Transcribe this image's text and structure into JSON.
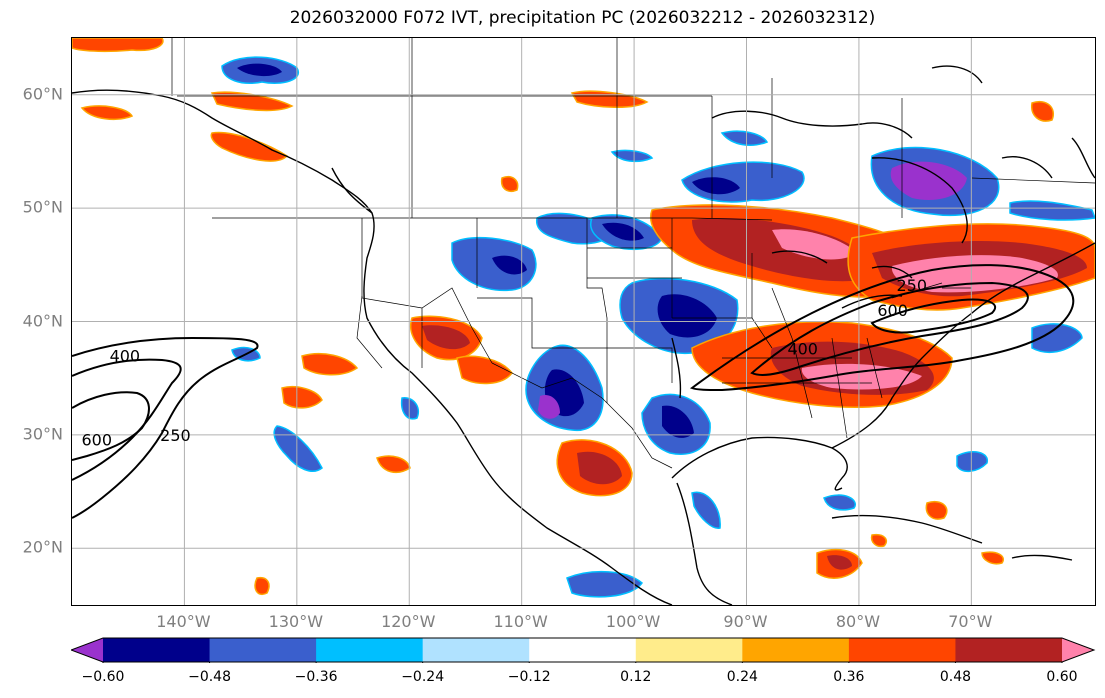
{
  "title": "2026032000 F072 IVT, precipitation PC (2026032212 - 2026032312)",
  "map": {
    "projection": "equirectangular",
    "lon_range": [
      -150,
      -59
    ],
    "lat_range": [
      15,
      65
    ],
    "grid": true,
    "lat_labels": [
      {
        "lat": 60,
        "text": "60°N"
      },
      {
        "lat": 50,
        "text": "50°N"
      },
      {
        "lat": 40,
        "text": "40°N"
      },
      {
        "lat": 30,
        "text": "30°N"
      },
      {
        "lat": 20,
        "text": "20°N"
      }
    ],
    "lon_labels": [
      {
        "lon": -140,
        "text": "140°W"
      },
      {
        "lon": -130,
        "text": "130°W"
      },
      {
        "lon": -120,
        "text": "120°W"
      },
      {
        "lon": -110,
        "text": "110°W"
      },
      {
        "lon": -100,
        "text": "100°W"
      },
      {
        "lon": -90,
        "text": "90°W"
      },
      {
        "lon": -80,
        "text": "80°W"
      },
      {
        "lon": -70,
        "text": "70°W"
      }
    ],
    "ivt_contour_labels": [
      {
        "text": "400",
        "lon": -145.3,
        "lat": 37.0
      },
      {
        "text": "600",
        "lon": -147.8,
        "lat": 29.6
      },
      {
        "text": "250",
        "lon": -140.8,
        "lat": 30.0
      },
      {
        "text": "250",
        "lon": -75.3,
        "lat": 43.2
      },
      {
        "text": "600",
        "lon": -77.0,
        "lat": 41.0
      },
      {
        "text": "400",
        "lon": -85.0,
        "lat": 37.6
      }
    ],
    "legend_colors": {
      "purple": "#9a32cd",
      "navy": "#00008b",
      "blue": "#3a5fcd",
      "cyan": "#00bfff",
      "lightblue": "#b0e2ff",
      "white": "#ffffff",
      "khaki": "#ffec8b",
      "orange": "#ffa500",
      "orangered": "#ff4500",
      "firebrick": "#b22222",
      "pink": "#ff82ab"
    }
  },
  "colorbar": {
    "levels": [
      -0.72,
      -0.6,
      -0.48,
      -0.36,
      -0.24,
      -0.12,
      0.12,
      0.24,
      0.36,
      0.48,
      0.6,
      0.72
    ],
    "colors": [
      "#9a32cd",
      "#00008b",
      "#3a5fcd",
      "#00bfff",
      "#b0e2ff",
      "#ffffff",
      "#ffec8b",
      "#ffa500",
      "#ff4500",
      "#b22222",
      "#ff82ab"
    ],
    "ticks": [
      {
        "value": -0.6,
        "text": "−0.60"
      },
      {
        "value": -0.48,
        "text": "−0.48"
      },
      {
        "value": -0.36,
        "text": "−0.36"
      },
      {
        "value": -0.24,
        "text": "−0.24"
      },
      {
        "value": -0.12,
        "text": "−0.12"
      },
      {
        "value": 0.12,
        "text": "0.12"
      },
      {
        "value": 0.24,
        "text": "0.24"
      },
      {
        "value": 0.36,
        "text": "0.36"
      },
      {
        "value": 0.48,
        "text": "0.48"
      },
      {
        "value": 0.6,
        "text": "0.60"
      }
    ],
    "extend": "both"
  }
}
